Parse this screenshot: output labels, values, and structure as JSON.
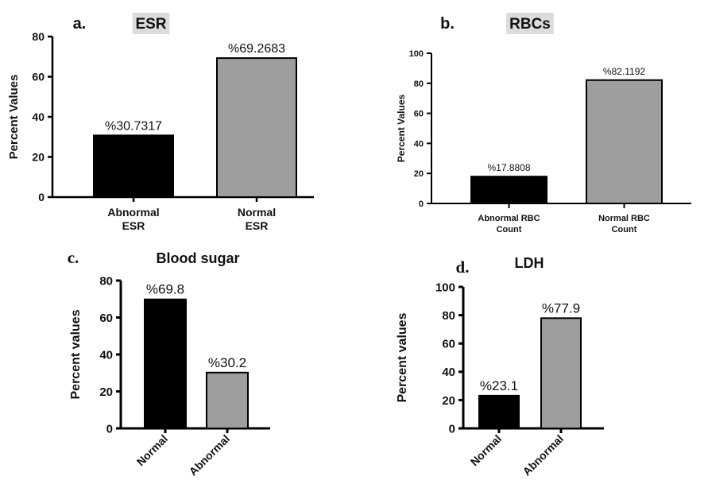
{
  "chart_data": [
    {
      "panel": "a.",
      "type": "bar",
      "title": "ESR",
      "ylabel": "Percent Values",
      "xlabel": "",
      "ylim": [
        0,
        80
      ],
      "yticks": [
        0,
        20,
        40,
        60,
        80
      ],
      "categories": [
        "Abnormal ESR",
        "Normal ESR"
      ],
      "values": [
        30.7317,
        69.2683
      ],
      "value_labels": [
        "%30.7317",
        "%69.2683"
      ],
      "colors": [
        "#000000",
        "#9e9e9e"
      ]
    },
    {
      "panel": "b.",
      "type": "bar",
      "title": "RBCs",
      "ylabel": "Percent Values",
      "xlabel": "",
      "ylim": [
        0,
        100
      ],
      "yticks": [
        0,
        20,
        40,
        60,
        80,
        100
      ],
      "categories": [
        "Abnormal RBC Count",
        "Normal RBC Count"
      ],
      "values": [
        17.8808,
        82.1192
      ],
      "value_labels": [
        "%17.8808",
        "%82.1192"
      ],
      "colors": [
        "#000000",
        "#9e9e9e"
      ]
    },
    {
      "panel": "c.",
      "type": "bar",
      "title": "Blood sugar",
      "ylabel": "Percent values",
      "xlabel": "",
      "ylim": [
        0,
        80
      ],
      "yticks": [
        0,
        20,
        40,
        60,
        80
      ],
      "categories": [
        "Normal",
        "Abnormal"
      ],
      "values": [
        69.8,
        30.2
      ],
      "value_labels": [
        "%69.8",
        "%30.2"
      ],
      "colors": [
        "#000000",
        "#9e9e9e"
      ]
    },
    {
      "panel": "d.",
      "type": "bar",
      "title": "LDH",
      "ylabel": "Percent values",
      "xlabel": "",
      "ylim": [
        0,
        100
      ],
      "yticks": [
        0,
        20,
        40,
        60,
        80,
        100
      ],
      "categories": [
        "Normal",
        "Abnormal"
      ],
      "values": [
        23.1,
        77.9
      ],
      "value_labels": [
        "%23.1",
        "%77.9"
      ],
      "colors": [
        "#000000",
        "#9e9e9e"
      ]
    }
  ]
}
